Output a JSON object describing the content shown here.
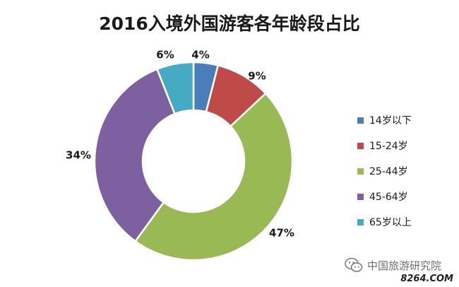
{
  "chart_data": {
    "type": "pie",
    "title": "2016入境外国游客各年龄段占比",
    "categories": [
      "14岁以下",
      "15-24岁",
      "25-44岁",
      "45-64岁",
      "65岁以上"
    ],
    "values": [
      4,
      9,
      47,
      34,
      6
    ],
    "value_labels": [
      "4%",
      "9%",
      "47%",
      "34%",
      "6%"
    ],
    "colors": [
      "#4a7ebb",
      "#be4b48",
      "#98b954",
      "#7d60a0",
      "#46aac5"
    ],
    "donut": true,
    "legend_position": "right"
  },
  "watermark": {
    "icon": "wechat-icon",
    "text": "中国旅游研究院",
    "site": "8264.COM"
  }
}
